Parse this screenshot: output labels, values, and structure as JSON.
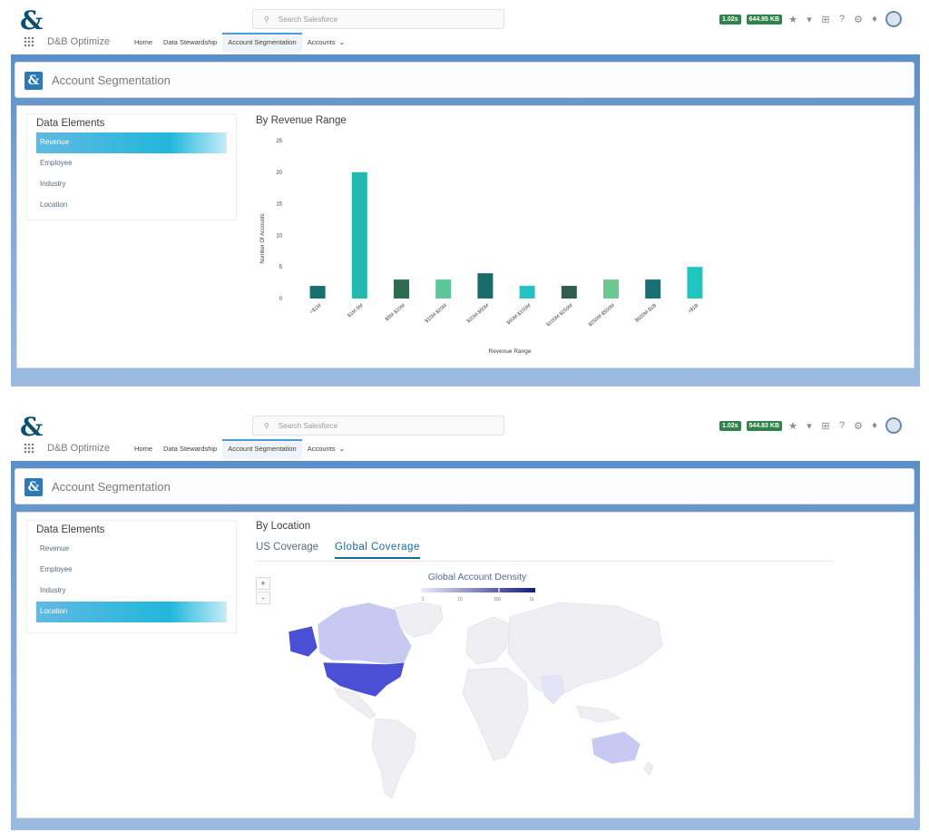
{
  "search": {
    "placeholder": "Search Salesforce"
  },
  "header_tools": {
    "badge1": "1.02s",
    "badge2": "644.95 KB",
    "badge2_b": "544.83 KB"
  },
  "nav": {
    "app_name": "D&B Optimize",
    "items": [
      "Home",
      "Data Stewardship",
      "Account Segmentation",
      "Accounts"
    ]
  },
  "logo_glyph": "&",
  "page": {
    "title": "Account Segmentation"
  },
  "sidebar": {
    "title": "Data Elements",
    "items": [
      "Revenue",
      "Employee",
      "Industry",
      "Location"
    ]
  },
  "revenue_chart": {
    "title": "By Revenue Range"
  },
  "location": {
    "title": "By Location",
    "tabs": [
      "US Coverage",
      "Global Coverage"
    ],
    "map_title": "Global Account Density",
    "legend_ticks": [
      "1",
      "10",
      "100",
      "1k"
    ],
    "zoom_in": "+",
    "zoom_out": "-"
  },
  "colors": {
    "accent": "#20b7dc",
    "nav_active": "#4f9bd6",
    "map_high": "#4b4fd6",
    "map_mid": "#8f92e6",
    "map_low": "#c7c9f2"
  },
  "chart_data": {
    "type": "bar",
    "title": "By Revenue Range",
    "xlabel": "Revenue Range",
    "ylabel": "Number Of Accounts",
    "ylim": [
      0,
      25
    ],
    "yticks": [
      "0",
      "5",
      "10",
      "15",
      "20",
      "25"
    ],
    "categories": [
      "<$1M",
      "$1M-5M",
      "$5M-$10M",
      "$10M-$20M",
      "$20M-$50M",
      "$50M-$100M",
      "$100M-$250M",
      "$250M-$500M",
      "$500M-$1B",
      ">$1B"
    ],
    "values": [
      2,
      20,
      3,
      3,
      4,
      2,
      2,
      3,
      3,
      5
    ],
    "colors": [
      "#16706e",
      "#1fb9b0",
      "#2e6b52",
      "#5cc69a",
      "#1a6b6b",
      "#22c3c0",
      "#2f5e4d",
      "#6cc890",
      "#1a6f72",
      "#20c5c0"
    ]
  }
}
